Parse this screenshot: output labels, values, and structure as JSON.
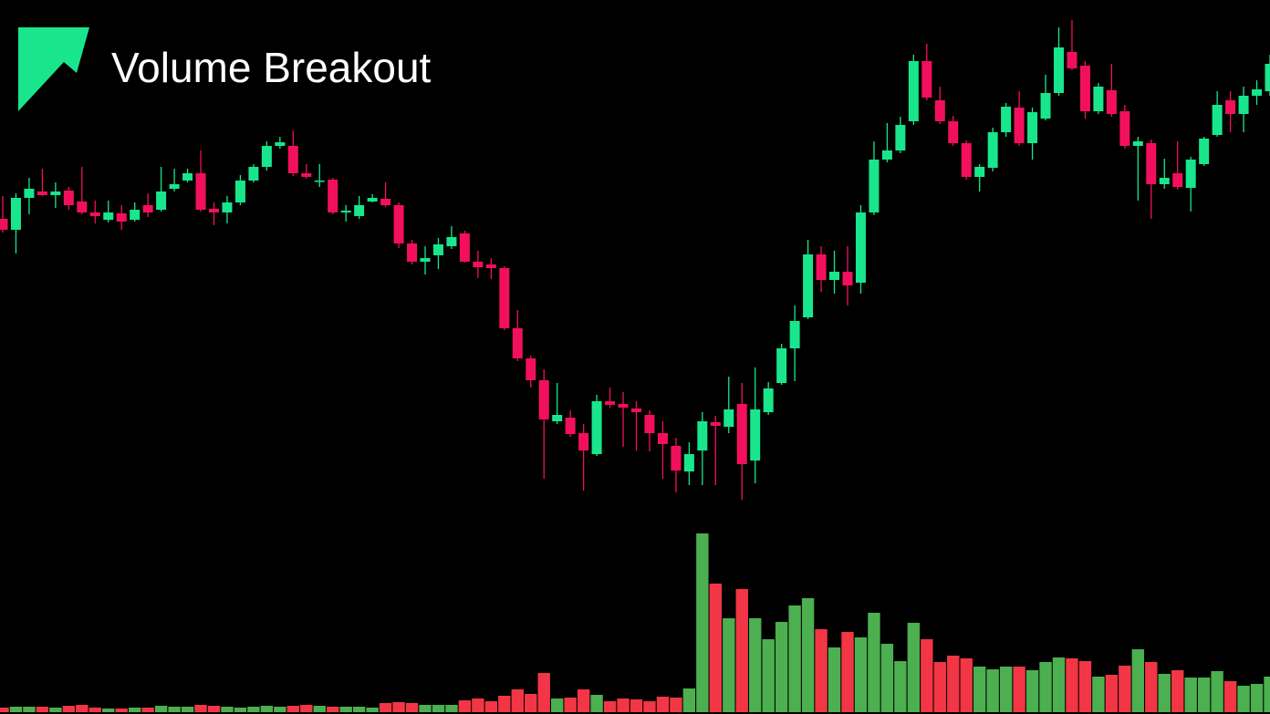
{
  "chart_data": {
    "type": "candlestick",
    "title": "Volume Breakout",
    "open": [
      560,
      548,
      583,
      590,
      586,
      591,
      579,
      567,
      559,
      566,
      559,
      575,
      570,
      593,
      602,
      610,
      571,
      567,
      578,
      602,
      617,
      640,
      640,
      610,
      601,
      603,
      567,
      563,
      579,
      582,
      575,
      533,
      513,
      520,
      530,
      544,
      513,
      510,
      506,
      440,
      407,
      383,
      338,
      342,
      325,
      302,
      360,
      357,
      352,
      345,
      325,
      311,
      283,
      306,
      337,
      332,
      357,
      295,
      348,
      380,
      418,
      452,
      521,
      493,
      502,
      490,
      567,
      625,
      635,
      667,
      733,
      690,
      667,
      643,
      606,
      616,
      655,
      682,
      643,
      670,
      698,
      743,
      728,
      678,
      701,
      678,
      640,
      643,
      598,
      610,
      594,
      620,
      652,
      690,
      675,
      695,
      700
    ],
    "high": [
      585,
      588,
      605,
      615,
      600,
      595,
      617,
      580,
      580,
      575,
      578,
      588,
      617,
      615,
      615,
      635,
      578,
      585,
      608,
      620,
      645,
      650,
      657,
      620,
      620,
      605,
      575,
      585,
      587,
      600,
      578,
      537,
      530,
      539,
      552,
      547,
      525,
      517,
      508,
      460,
      410,
      395,
      380,
      350,
      335,
      367,
      375,
      370,
      360,
      350,
      338,
      320,
      315,
      348,
      344,
      387,
      380,
      397,
      381,
      423,
      465,
      537,
      530,
      525,
      530,
      575,
      645,
      665,
      672,
      740,
      752,
      705,
      673,
      646,
      620,
      660,
      687,
      700,
      682,
      718,
      770,
      778,
      733,
      709,
      730,
      685,
      650,
      647,
      626,
      645,
      628,
      650,
      700,
      700,
      705,
      712,
      740
    ],
    "low": [
      545,
      522,
      565,
      585,
      572,
      570,
      565,
      555,
      556,
      548,
      557,
      562,
      568,
      590,
      600,
      568,
      553,
      555,
      575,
      600,
      613,
      637,
      607,
      604,
      595,
      565,
      557,
      560,
      578,
      573,
      528,
      510,
      499,
      505,
      527,
      512,
      495,
      494,
      438,
      404,
      375,
      275,
      335,
      321,
      262,
      300,
      353,
      310,
      306,
      305,
      275,
      260,
      268,
      268,
      268,
      325,
      252,
      270,
      345,
      378,
      382,
      450,
      480,
      478,
      465,
      478,
      564,
      622,
      632,
      663,
      690,
      664,
      640,
      603,
      590,
      612,
      650,
      640,
      625,
      668,
      695,
      723,
      670,
      675,
      672,
      637,
      580,
      560,
      593,
      592,
      568,
      618,
      650,
      655,
      655,
      685,
      695
    ],
    "close": [
      548,
      583,
      593,
      586,
      590,
      575,
      567,
      563,
      567,
      557,
      570,
      567,
      590,
      598,
      610,
      570,
      567,
      578,
      602,
      617,
      640,
      644,
      610,
      606,
      602,
      567,
      569,
      575,
      583,
      575,
      533,
      513,
      517,
      532,
      540,
      513,
      507,
      506,
      440,
      407,
      383,
      340,
      345,
      324,
      306,
      360,
      356,
      353,
      348,
      325,
      313,
      284,
      302,
      338,
      333,
      351,
      291,
      351,
      374,
      418,
      448,
      521,
      493,
      502,
      487,
      567,
      625,
      635,
      663,
      733,
      693,
      667,
      643,
      606,
      617,
      655,
      683,
      643,
      677,
      698,
      748,
      725,
      678,
      705,
      675,
      640,
      645,
      598,
      605,
      595,
      625,
      648,
      685,
      675,
      695,
      702,
      730
    ],
    "volume": [
      5,
      6,
      6,
      6,
      5,
      7,
      8,
      5,
      4,
      4,
      5,
      5,
      7,
      6,
      6,
      8,
      7,
      6,
      5,
      6,
      7,
      6,
      7,
      8,
      7,
      6,
      6,
      6,
      5,
      10,
      11,
      10,
      8,
      8,
      8,
      13,
      15,
      12,
      18,
      25,
      20,
      43,
      15,
      16,
      25,
      19,
      12,
      15,
      14,
      12,
      17,
      16,
      26,
      196,
      141,
      103,
      135,
      103,
      80,
      99,
      117,
      125,
      91,
      71,
      88,
      82,
      109,
      75,
      56,
      98,
      80,
      55,
      62,
      59,
      50,
      47,
      50,
      50,
      46,
      55,
      60,
      59,
      56,
      39,
      41,
      51,
      69,
      55,
      42,
      46,
      38,
      38,
      45,
      34,
      29,
      31,
      39
    ],
    "up_color": "#19e68c",
    "down_color": "#f2105c",
    "volume_up_color": "#4caf50",
    "volume_down_color": "#f23645",
    "ylim": [
      17,
      800
    ],
    "volume_lim": [
      0,
      200
    ]
  }
}
